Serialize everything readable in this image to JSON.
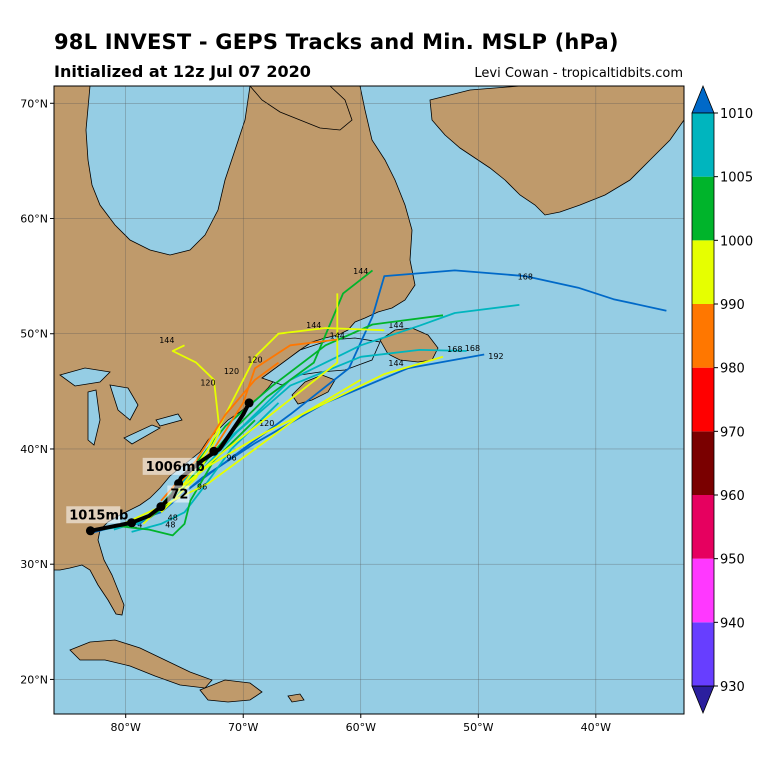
{
  "header": {
    "title": "98L INVEST - GEPS Tracks and Min. MSLP (hPa)",
    "subtitle": "Initialized at 12z Jul 07 2020",
    "credit": "Levi Cowan - tropicaltidbits.com"
  },
  "map": {
    "lon_range": [
      -86.1,
      -32.5
    ],
    "lat_range": [
      17,
      71.5
    ],
    "ocean_color": "#95cde4",
    "land_color": "#bf9a6b",
    "lat_ticks": [
      {
        "value": 20,
        "label": "20°N"
      },
      {
        "value": 30,
        "label": "30°N"
      },
      {
        "value": 40,
        "label": "40°N"
      },
      {
        "value": 50,
        "label": "50°N"
      },
      {
        "value": 60,
        "label": "60°N"
      },
      {
        "value": 70,
        "label": "70°N"
      }
    ],
    "lon_ticks": [
      {
        "value": -80,
        "label": "80°W"
      },
      {
        "value": -70,
        "label": "70°W"
      },
      {
        "value": -60,
        "label": "60°W"
      },
      {
        "value": -50,
        "label": "50°W"
      },
      {
        "value": -40,
        "label": "40°W"
      }
    ]
  },
  "colorbar": {
    "bins": [
      {
        "low": 930,
        "color": "#673eff"
      },
      {
        "low": 940,
        "color": "#ff38ff"
      },
      {
        "low": 950,
        "color": "#e6005f"
      },
      {
        "low": 960,
        "color": "#7a0000"
      },
      {
        "low": 970,
        "color": "#ff0000"
      },
      {
        "low": 980,
        "color": "#ff7700"
      },
      {
        "low": 990,
        "color": "#e6ff00"
      },
      {
        "low": 1000,
        "color": "#00b42b"
      },
      {
        "low": 1005,
        "color": "#00b5be"
      }
    ],
    "bottom_extend_color": "#2b1f9e",
    "top_extend_color": "#0069c8",
    "labels": [
      "930",
      "940",
      "950",
      "960",
      "970",
      "980",
      "990",
      "1000",
      "1005",
      "1010"
    ]
  },
  "tracks": [
    {
      "color": "#0069c8",
      "points": [
        [
          -83,
          32.7
        ],
        [
          -80,
          33.5
        ],
        [
          -77,
          34.5
        ],
        [
          -73.5,
          37.5
        ],
        [
          -69,
          40.5
        ],
        [
          -63,
          44
        ],
        [
          -56,
          47
        ],
        [
          -49.5,
          48.2
        ]
      ],
      "labels": [
        {
          "text": "24",
          "lon": -79,
          "lat": 33.2
        },
        {
          "text": "168",
          "lon": -50.5,
          "lat": 48.5
        }
      ]
    },
    {
      "color": "#0069c8",
      "points": [
        [
          -79,
          33.4
        ],
        [
          -76,
          35.5
        ],
        [
          -72,
          38.5
        ],
        [
          -66,
          43
        ],
        [
          -61,
          47
        ],
        [
          -59,
          51.5
        ],
        [
          -58,
          55
        ],
        [
          -52,
          55.5
        ],
        [
          -46,
          55
        ],
        [
          -41.5,
          54
        ],
        [
          -38.5,
          53
        ],
        [
          -34,
          52
        ]
      ],
      "labels": [
        {
          "text": "168",
          "lon": -46,
          "lat": 54.7
        }
      ]
    },
    {
      "color": "#00b5be",
      "points": [
        [
          -82,
          33
        ],
        [
          -79,
          33.5
        ],
        [
          -77,
          35
        ],
        [
          -74,
          38.5
        ],
        [
          -70,
          42
        ],
        [
          -66,
          46
        ],
        [
          -60,
          49
        ],
        [
          -55,
          50.7
        ],
        [
          -52,
          51.8
        ],
        [
          -46.5,
          52.5
        ]
      ],
      "labels": [
        {
          "text": "144",
          "lon": -57,
          "lat": 50.5
        }
      ]
    },
    {
      "color": "#00b5be",
      "points": [
        [
          -81,
          33
        ],
        [
          -78,
          34
        ],
        [
          -75,
          36.5
        ],
        [
          -70.5,
          41.5
        ],
        [
          -66,
          45.5
        ],
        [
          -60,
          48
        ],
        [
          -55,
          48.6
        ],
        [
          -51,
          48.5
        ]
      ],
      "labels": [
        {
          "text": "168",
          "lon": -52,
          "lat": 48.4
        },
        {
          "text": "192",
          "lon": -48.5,
          "lat": 47.8
        }
      ]
    },
    {
      "color": "#00b5be",
      "points": [
        [
          -79.5,
          32.8
        ],
        [
          -77,
          33.5
        ],
        [
          -75,
          34.5
        ],
        [
          -73.5,
          36.5
        ],
        [
          -71,
          40
        ],
        [
          -67,
          44
        ]
      ],
      "labels": [
        {
          "text": "48",
          "lon": -76,
          "lat": 33.8
        }
      ]
    },
    {
      "color": "#00b42b",
      "points": [
        [
          -80,
          33.3
        ],
        [
          -77.5,
          34.5
        ],
        [
          -75,
          37.5
        ],
        [
          -71.5,
          42
        ],
        [
          -67.5,
          45.5
        ],
        [
          -63,
          49
        ],
        [
          -59,
          50.8
        ],
        [
          -53,
          51.6
        ]
      ],
      "labels": []
    },
    {
      "color": "#00b42b",
      "points": [
        [
          -78,
          34
        ],
        [
          -76,
          35.5
        ],
        [
          -74,
          38
        ],
        [
          -71,
          41.5
        ],
        [
          -68,
          44.5
        ],
        [
          -64,
          47.5
        ],
        [
          -61.5,
          53.5
        ],
        [
          -59,
          55.5
        ]
      ],
      "labels": [
        {
          "text": "144",
          "lon": -60,
          "lat": 55.2
        }
      ]
    },
    {
      "color": "#00b42b",
      "points": [
        [
          -80.5,
          33.3
        ],
        [
          -78,
          33
        ],
        [
          -76,
          32.5
        ],
        [
          -75,
          33.5
        ],
        [
          -74.5,
          35.5
        ],
        [
          -72.5,
          39
        ],
        [
          -69,
          42.5
        ]
      ],
      "labels": [
        {
          "text": "48",
          "lon": -76.2,
          "lat": 33.2
        }
      ]
    },
    {
      "color": "#e6ff00",
      "points": [
        [
          -78,
          34
        ],
        [
          -75,
          37
        ],
        [
          -73,
          40
        ],
        [
          -71,
          44
        ],
        [
          -69,
          48
        ],
        [
          -67,
          50
        ],
        [
          -63,
          50.5
        ],
        [
          -58,
          50.3
        ]
      ],
      "labels": [
        {
          "text": "144",
          "lon": -64,
          "lat": 50.5
        }
      ]
    },
    {
      "color": "#e6ff00",
      "points": [
        [
          -77,
          34.5
        ],
        [
          -74,
          37.5
        ],
        [
          -72,
          41.5
        ],
        [
          -72.5,
          46
        ],
        [
          -74,
          47.5
        ],
        [
          -76,
          48.5
        ],
        [
          -75,
          49
        ]
      ],
      "labels": [
        {
          "text": "144",
          "lon": -76.5,
          "lat": 49.2
        },
        {
          "text": "120",
          "lon": -73,
          "lat": 45.5
        }
      ]
    },
    {
      "color": "#e6ff00",
      "points": [
        [
          -76,
          36
        ],
        [
          -73,
          38.5
        ],
        [
          -68,
          41.5
        ],
        [
          -63,
          44
        ],
        [
          -58,
          46.5
        ],
        [
          -53,
          48
        ]
      ],
      "labels": [
        {
          "text": "120",
          "lon": -68,
          "lat": 42
        },
        {
          "text": "144",
          "lon": -57,
          "lat": 47.2
        }
      ]
    },
    {
      "color": "#e6ff00",
      "points": [
        [
          -78.5,
          33.5
        ],
        [
          -76,
          36
        ],
        [
          -72,
          39.5
        ],
        [
          -67,
          43.5
        ],
        [
          -62,
          47.5
        ],
        [
          -62,
          53.5
        ]
      ],
      "labels": [
        {
          "text": "96",
          "lon": -71,
          "lat": 39
        }
      ]
    },
    {
      "color": "#e6ff00",
      "points": [
        [
          -80,
          33.6
        ],
        [
          -77,
          35
        ],
        [
          -73,
          37
        ],
        [
          -69,
          40
        ],
        [
          -65,
          43
        ],
        [
          -60,
          46
        ]
      ],
      "labels": [
        {
          "text": "96",
          "lon": -73.5,
          "lat": 36.5
        }
      ]
    },
    {
      "color": "#ff7700",
      "points": [
        [
          -76,
          36.5
        ],
        [
          -72.5,
          40
        ],
        [
          -70,
          44
        ],
        [
          -69,
          47
        ],
        [
          -66,
          49
        ],
        [
          -62,
          49.5
        ]
      ],
      "labels": [
        {
          "text": "120",
          "lon": -69,
          "lat": 47.5
        },
        {
          "text": "144",
          "lon": -62,
          "lat": 49.6
        }
      ]
    },
    {
      "color": "#ff7700",
      "points": [
        [
          -77,
          35.5
        ],
        [
          -74,
          39
        ],
        [
          -71.5,
          43
        ],
        [
          -69,
          46
        ],
        [
          -67,
          47.5
        ]
      ],
      "labels": [
        {
          "text": "120",
          "lon": -71,
          "lat": 46.5
        }
      ]
    }
  ],
  "mean_track": {
    "color": "#000000",
    "points": [
      [
        -83,
        32.9
      ],
      [
        -81,
        33.3
      ],
      [
        -79.5,
        33.6
      ],
      [
        -78,
        34.2
      ],
      [
        -77,
        35
      ],
      [
        -76,
        36
      ],
      [
        -75.3,
        37.5
      ],
      [
        -73.5,
        39
      ],
      [
        -72,
        40
      ],
      [
        -71,
        41.5
      ],
      [
        -70,
        43
      ],
      [
        -69.5,
        44
      ]
    ],
    "dots": [
      [
        -83,
        32.9
      ],
      [
        -79.5,
        33.6
      ],
      [
        -77,
        35
      ],
      [
        -75.5,
        37
      ],
      [
        -72.5,
        39.8
      ],
      [
        -69.5,
        44
      ]
    ],
    "labels": [
      {
        "text": "1015mb",
        "lon": -84.8,
        "lat": 33.9
      },
      {
        "text": "1006mb",
        "lon": -78.3,
        "lat": 38.1
      },
      {
        "text": "72",
        "lon": -76.2,
        "lat": 35.7
      }
    ]
  }
}
